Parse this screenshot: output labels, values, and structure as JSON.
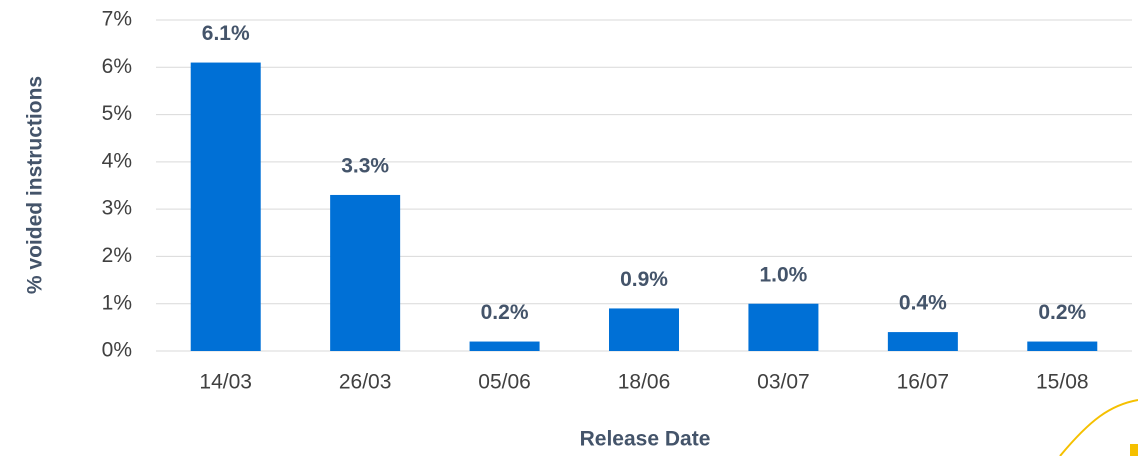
{
  "chart_data": {
    "type": "bar",
    "x_label": "Release Date",
    "y_label": "% voided instructions",
    "categories": [
      "14/03",
      "26/03",
      "05/06",
      "18/06",
      "03/07",
      "16/07",
      "15/08"
    ],
    "values": [
      6.1,
      3.3,
      0.2,
      0.9,
      1.0,
      0.4,
      0.2
    ],
    "value_labels": [
      "6.1%",
      "3.3%",
      "0.2%",
      "0.9%",
      "1.0%",
      "0.4%",
      "0.2%"
    ],
    "color": "#0070d6",
    "ylim": [
      0,
      7
    ],
    "yticks": [
      {
        "value": 0,
        "label": "0%"
      },
      {
        "value": 1,
        "label": "1%"
      },
      {
        "value": 2,
        "label": "2%"
      },
      {
        "value": 3,
        "label": "3%"
      },
      {
        "value": 4,
        "label": "4%"
      },
      {
        "value": 5,
        "label": "5%"
      },
      {
        "value": 6,
        "label": "6%"
      },
      {
        "value": 7,
        "label": "7%"
      }
    ],
    "grid": true
  }
}
